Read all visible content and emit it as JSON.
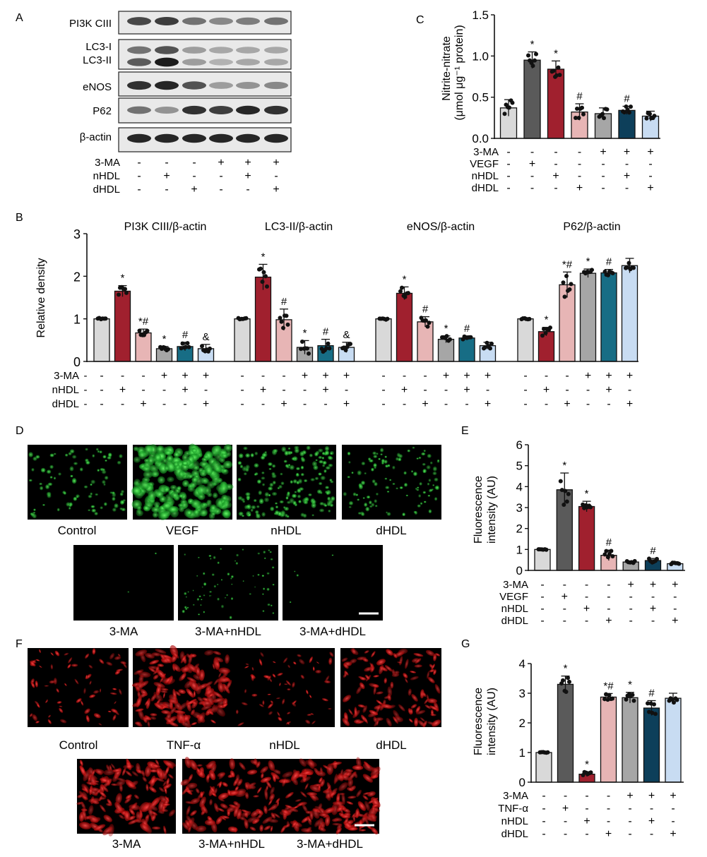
{
  "colors": {
    "ctrl": "#d9d9d9",
    "dark": "#5a5a5a",
    "red": "#a0202e",
    "pink": "#e7b5b5",
    "gray": "#a6a6a6",
    "teal": "#176d85",
    "lightblue": "#c8dcf2",
    "navy": "#0d3f5a",
    "green": "#2fd24e",
    "redcell": "#e21c1c"
  },
  "panels": {
    "A": {
      "letter": "A",
      "bands": [
        "PI3K CIII",
        "LC3-I",
        "LC3-II",
        "eNOS",
        "P62",
        "β-actin"
      ],
      "treat_rows": [
        {
          "name": "3-MA",
          "signs": [
            "-",
            "-",
            "-",
            "+",
            "+",
            "+"
          ]
        },
        {
          "name": "nHDL",
          "signs": [
            "-",
            "+",
            "-",
            "-",
            "+",
            "-"
          ]
        },
        {
          "name": "dHDL",
          "signs": [
            "-",
            "-",
            "+",
            "-",
            "-",
            "+"
          ]
        }
      ]
    },
    "B": {
      "letter": "B",
      "ylabel": "Relative density",
      "treat_rows": [
        {
          "name": "3-MA",
          "signs": [
            "-",
            "-",
            "-",
            "+",
            "+",
            "+"
          ]
        },
        {
          "name": "nHDL",
          "signs": [
            "-",
            "+",
            "-",
            "-",
            "+",
            "-"
          ]
        },
        {
          "name": "dHDL",
          "signs": [
            "-",
            "-",
            "+",
            "-",
            "-",
            "+"
          ]
        }
      ]
    },
    "C": {
      "letter": "C",
      "ylabel_line1": "Nitrite-nitrate",
      "ylabel_line2": "(μmol μg⁻¹ protein)",
      "treat_rows": [
        {
          "name": "3-MA",
          "signs": [
            "-",
            "-",
            "-",
            "-",
            "+",
            "+",
            "+"
          ]
        },
        {
          "name": "VEGF",
          "signs": [
            "-",
            "+",
            "-",
            "-",
            "-",
            "-",
            "-"
          ]
        },
        {
          "name": "nHDL",
          "signs": [
            "-",
            "-",
            "+",
            "-",
            "-",
            "+",
            "-"
          ]
        },
        {
          "name": "dHDL",
          "signs": [
            "-",
            "-",
            "-",
            "+",
            "-",
            "-",
            "+"
          ]
        }
      ]
    },
    "D": {
      "letter": "D",
      "labels": [
        "Control",
        "VEGF",
        "nHDL",
        "dHDL",
        "3-MA",
        "3-MA+nHDL",
        "3-MA+dHDL"
      ]
    },
    "E": {
      "letter": "E",
      "ylabel_line1": "Fluorescence",
      "ylabel_line2": "intensity (AU)",
      "treat_rows": [
        {
          "name": "3-MA",
          "signs": [
            "-",
            "-",
            "-",
            "-",
            "+",
            "+",
            "+"
          ]
        },
        {
          "name": "VEGF",
          "signs": [
            "-",
            "+",
            "-",
            "-",
            "-",
            "-",
            "-"
          ]
        },
        {
          "name": "nHDL",
          "signs": [
            "-",
            "-",
            "+",
            "-",
            "-",
            "+",
            "-"
          ]
        },
        {
          "name": "dHDL",
          "signs": [
            "-",
            "-",
            "-",
            "+",
            "-",
            "-",
            "+"
          ]
        }
      ]
    },
    "F": {
      "letter": "F",
      "labels": [
        "Control",
        "TNF-α",
        "nHDL",
        "dHDL",
        "3-MA",
        "3-MA+nHDL",
        "3-MA+dHDL"
      ]
    },
    "G": {
      "letter": "G",
      "ylabel_line1": "Fluorescence",
      "ylabel_line2": "intensity (AU)",
      "treat_rows": [
        {
          "name": "3-MA",
          "signs": [
            "-",
            "-",
            "-",
            "-",
            "+",
            "+",
            "+"
          ]
        },
        {
          "name": "TNF-α",
          "signs": [
            "-",
            "+",
            "-",
            "-",
            "-",
            "-",
            "-"
          ]
        },
        {
          "name": "nHDL",
          "signs": [
            "-",
            "-",
            "+",
            "-",
            "-",
            "+",
            "-"
          ]
        },
        {
          "name": "dHDL",
          "signs": [
            "-",
            "-",
            "-",
            "+",
            "-",
            "-",
            "+"
          ]
        }
      ]
    }
  },
  "chart_data": [
    {
      "panel": "B",
      "type": "bar",
      "ylabel": "Relative density",
      "ylim": [
        0,
        3
      ],
      "yticks": [
        0,
        1,
        2,
        3
      ],
      "groups": [
        {
          "title": "PI3K CIII/β-actin",
          "values": [
            1.0,
            1.65,
            0.67,
            0.3,
            0.35,
            0.3
          ],
          "errors": [
            0.02,
            0.13,
            0.09,
            0.05,
            0.1,
            0.1
          ],
          "marks": [
            "",
            "*",
            "*#",
            "*",
            "#",
            "&"
          ],
          "colors": [
            "ctrl",
            "red",
            "pink",
            "gray",
            "teal",
            "lightblue"
          ]
        },
        {
          "title": "LC3-II/β-actin",
          "values": [
            1.0,
            1.98,
            0.98,
            0.33,
            0.37,
            0.33
          ],
          "errors": [
            0.02,
            0.3,
            0.25,
            0.16,
            0.15,
            0.12
          ],
          "marks": [
            "",
            "*",
            "#",
            "*",
            "#",
            "&"
          ],
          "colors": [
            "ctrl",
            "red",
            "pink",
            "gray",
            "teal",
            "lightblue"
          ]
        },
        {
          "title": "eNOS/β-actin",
          "values": [
            1.0,
            1.6,
            0.93,
            0.52,
            0.55,
            0.37
          ],
          "errors": [
            0.02,
            0.15,
            0.12,
            0.08,
            0.05,
            0.08
          ],
          "marks": [
            "",
            "*",
            "#",
            "*",
            "#",
            ""
          ],
          "colors": [
            "ctrl",
            "red",
            "pink",
            "gray",
            "teal",
            "lightblue"
          ]
        },
        {
          "title": "P62/β-actin",
          "values": [
            1.0,
            0.7,
            1.8,
            2.07,
            2.08,
            2.25
          ],
          "errors": [
            0.02,
            0.1,
            0.3,
            0.1,
            0.08,
            0.17
          ],
          "marks": [
            "",
            "*",
            "*#",
            "*",
            "#",
            ""
          ],
          "colors": [
            "ctrl",
            "red",
            "pink",
            "gray",
            "teal",
            "lightblue"
          ]
        }
      ]
    },
    {
      "panel": "C",
      "type": "bar",
      "ylim": [
        0,
        1.5
      ],
      "yticks": [
        0.0,
        0.5,
        1.0,
        1.5
      ],
      "values": [
        0.37,
        0.95,
        0.84,
        0.32,
        0.3,
        0.34,
        0.27
      ],
      "errors": [
        0.1,
        0.1,
        0.1,
        0.1,
        0.07,
        0.05,
        0.06
      ],
      "marks": [
        "",
        "*",
        "*",
        "#",
        "",
        "#",
        ""
      ],
      "colors": [
        "ctrl",
        "dark",
        "red",
        "pink",
        "gray",
        "navy",
        "lightblue"
      ]
    },
    {
      "panel": "E",
      "type": "bar",
      "ylim": [
        0,
        6
      ],
      "yticks": [
        0,
        1,
        2,
        3,
        4,
        5,
        6
      ],
      "values": [
        1.0,
        3.85,
        3.05,
        0.72,
        0.4,
        0.47,
        0.32
      ],
      "errors": [
        0.02,
        0.8,
        0.25,
        0.25,
        0.05,
        0.1,
        0.05
      ],
      "marks": [
        "",
        "*",
        "*",
        "#",
        "",
        "#",
        ""
      ],
      "colors": [
        "ctrl",
        "dark",
        "red",
        "pink",
        "gray",
        "navy",
        "lightblue"
      ]
    },
    {
      "panel": "G",
      "type": "bar",
      "ylim": [
        0,
        4
      ],
      "yticks": [
        0,
        1,
        2,
        3,
        4
      ],
      "values": [
        1.0,
        3.3,
        0.27,
        2.87,
        2.85,
        2.5,
        2.83
      ],
      "errors": [
        0.02,
        0.28,
        0.08,
        0.12,
        0.18,
        0.25,
        0.17
      ],
      "marks": [
        "",
        "*",
        "*",
        "*#",
        "*",
        "#",
        ""
      ],
      "colors": [
        "ctrl",
        "dark",
        "red",
        "pink",
        "gray",
        "navy",
        "lightblue"
      ]
    }
  ]
}
